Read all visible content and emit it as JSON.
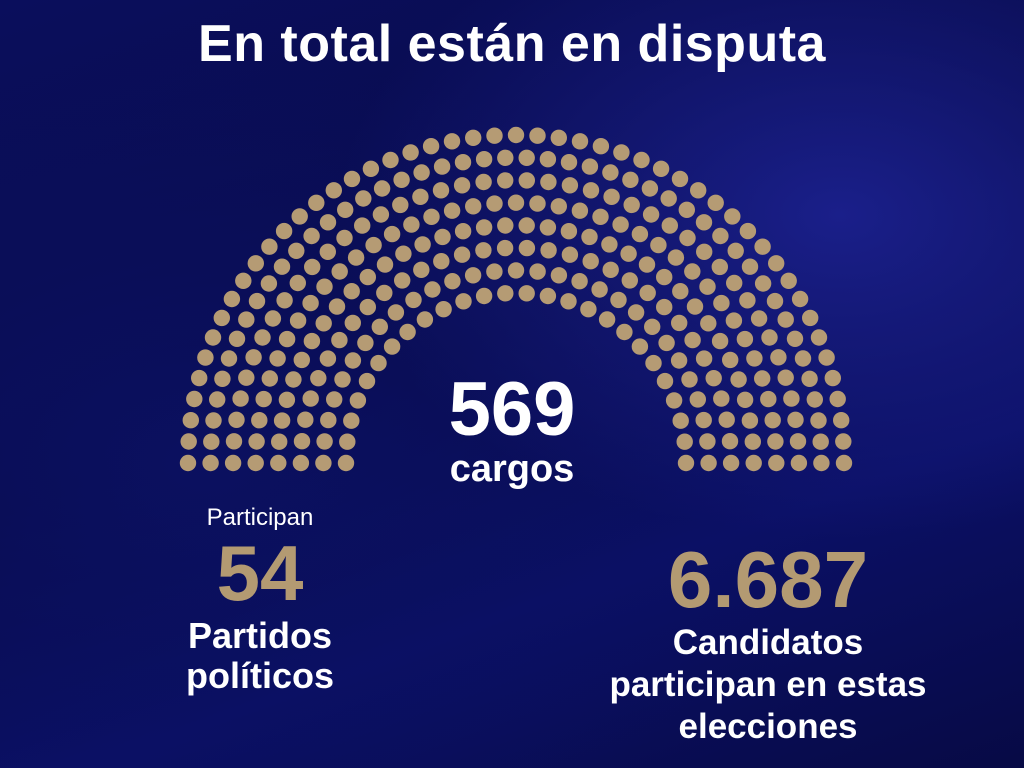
{
  "title": "En total están en disputa",
  "colors": {
    "accent_gold": "#b39a72",
    "seat_color": "#b59b74",
    "background": "#0a0e5c",
    "text": "#ffffff"
  },
  "hemicycle": {
    "total_seats_value": 569,
    "center_number": "569",
    "center_label": "cargos"
  },
  "parties": {
    "pre_label": "Participan",
    "number": "54",
    "label_line1": "Partidos",
    "label_line2": "políticos"
  },
  "candidates": {
    "number": "6.687",
    "label_line1": "Candidatos",
    "label_line2": "participan en estas",
    "label_line3": "elecciones"
  }
}
